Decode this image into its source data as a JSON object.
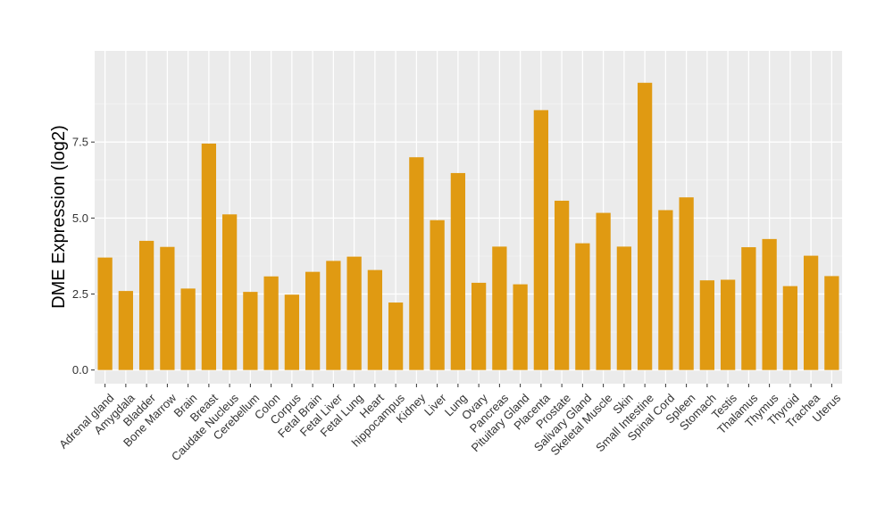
{
  "chart_data": {
    "type": "bar",
    "ylabel": "DME Expression (log2)",
    "xlabel": "",
    "ylim": [
      -0.45,
      10.5
    ],
    "yticks": [
      0.0,
      2.5,
      5.0,
      7.5
    ],
    "ytick_labels": [
      "0.0",
      "2.5",
      "5.0",
      "7.5"
    ],
    "grid": true,
    "bar_color": "#E09A12",
    "panel_bg": "#EBEBEB",
    "categories": [
      "Adrenal gland",
      "Amygdala",
      "Bladder",
      "Bone Marrow",
      "Brain",
      "Breast",
      "Caudate Nucleus",
      "Cerebellum",
      "Colon",
      "Corpus",
      "Fetal Brain",
      "Fetal Liver",
      "Fetal Lung",
      "Heart",
      "hippocampus",
      "Kidney",
      "Liver",
      "Lung",
      "Ovary",
      "Pancreas",
      "Pituitary Gland",
      "Placenta",
      "Prostate",
      "Salivary Gland",
      "Skeletal Muscle",
      "Skin",
      "Small Intestine",
      "Spinal Cord",
      "Spleen",
      "Stomach",
      "Testis",
      "Thalamus",
      "Thymus",
      "Thyroid",
      "Trachea",
      "Uterus"
    ],
    "values": [
      3.7,
      2.6,
      4.25,
      4.05,
      2.68,
      7.45,
      5.12,
      2.57,
      3.08,
      2.48,
      3.23,
      3.59,
      3.73,
      3.29,
      2.22,
      7.0,
      4.93,
      6.48,
      2.87,
      4.06,
      2.82,
      8.55,
      5.57,
      4.17,
      5.17,
      4.06,
      9.45,
      5.26,
      5.68,
      2.95,
      2.97,
      4.04,
      4.31,
      2.76,
      3.76,
      3.09
    ]
  }
}
